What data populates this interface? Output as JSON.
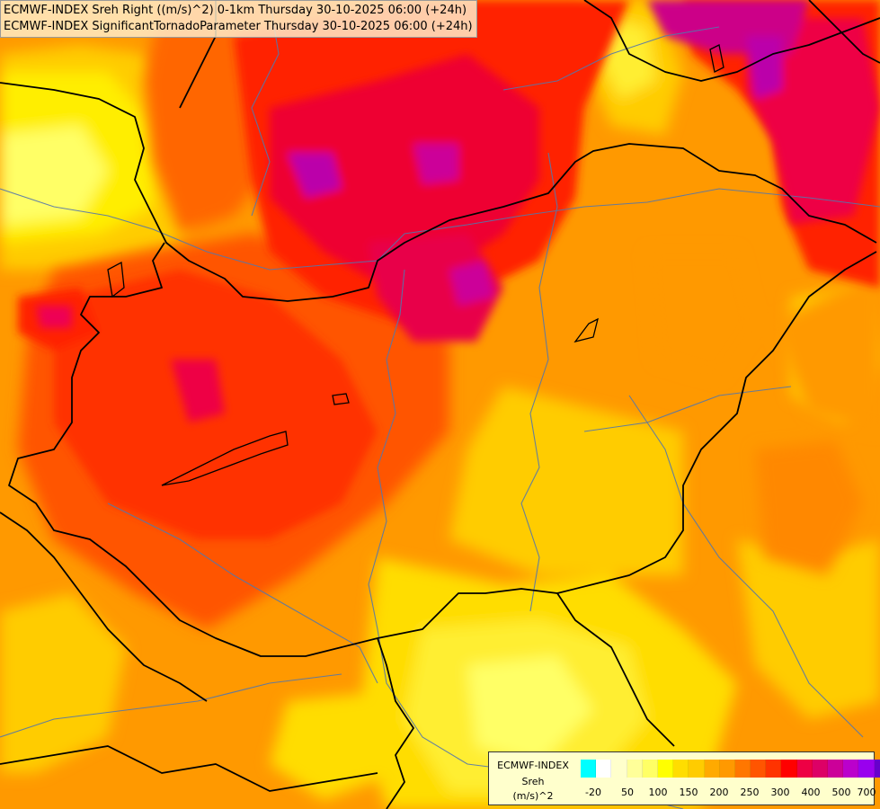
{
  "titles": {
    "line1": "ECMWF-INDEX Sreh Right ((m/s)^2) 0-1km Thursday 30-10-2025 06:00 (+24h)",
    "line2": "ECMWF-INDEX SignificantTornadoParameter Thursday 30-10-2025 06:00 (+24h)"
  },
  "legend": {
    "source": "ECMWF-INDEX",
    "variable": "Sreh",
    "unit": "(m/s)^2",
    "colors": [
      "#00ffff",
      "#ffffff",
      "#ffffcc",
      "#ffff99",
      "#ffff66",
      "#ffff00",
      "#ffdd00",
      "#ffcc00",
      "#ffaa00",
      "#ff9900",
      "#ff7700",
      "#ff5500",
      "#ff3300",
      "#ff0000",
      "#ee0044",
      "#dd0066",
      "#cc0099",
      "#bb00cc",
      "#9900ee",
      "#6600cc",
      "#3300aa",
      "#000088"
    ],
    "ticks": [
      "-20",
      "50",
      "100",
      "150",
      "200",
      "250",
      "300",
      "400",
      "500",
      "700"
    ]
  },
  "colors": {
    "field_base": "#ff9900",
    "light_yellow": "#ffff66",
    "yellow": "#ffdd00",
    "orange_light": "#ffbb00",
    "orange": "#ff7700",
    "red_orange": "#ff4400",
    "red": "#ff2200",
    "crimson": "#ee0033",
    "magenta": "#cc0077",
    "purple": "#bb00aa",
    "border": "#000000",
    "river": "#5577aa"
  }
}
